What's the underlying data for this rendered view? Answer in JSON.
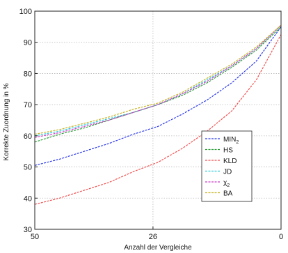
{
  "chart_data": {
    "type": "line",
    "xlabel": "Anzahl der Vergleiche",
    "ylabel": "Korrekte Zuordnung in %",
    "xlim": [
      50,
      0
    ],
    "ylim": [
      30,
      100
    ],
    "x_ticks": [
      50,
      26,
      0
    ],
    "y_ticks": [
      30,
      40,
      50,
      60,
      70,
      80,
      90,
      100
    ],
    "grid": true,
    "legend_position": "lower-right",
    "x": [
      50,
      45,
      40,
      35,
      30,
      25,
      20,
      15,
      10,
      5,
      0
    ],
    "series": [
      {
        "name": "MIN",
        "name_sub": "2",
        "color": "#2c3ae8",
        "values": [
          50.5,
          52.5,
          55,
          57.5,
          60.5,
          63,
          67,
          71.5,
          77,
          84,
          95
        ]
      },
      {
        "name": "HS",
        "name_sub": "",
        "color": "#2f9d3c",
        "values": [
          58,
          60.5,
          62.5,
          65,
          67.5,
          70,
          73,
          77,
          82,
          87.5,
          95
        ]
      },
      {
        "name": "KLD",
        "name_sub": "",
        "color": "#f05050",
        "values": [
          38,
          40,
          42.5,
          45,
          48.5,
          51.5,
          56,
          61.5,
          68,
          78,
          92.5
        ]
      },
      {
        "name": "JD",
        "name_sub": "",
        "color": "#2fc8d8",
        "values": [
          60,
          61.5,
          63.5,
          65.5,
          67.5,
          70,
          73.5,
          78,
          82.5,
          88,
          95.5
        ]
      },
      {
        "name": "χ",
        "name_sub": "2",
        "color": "#c840c8",
        "values": [
          59.5,
          61,
          63,
          65,
          67.5,
          70,
          73.5,
          77.5,
          82.5,
          88,
          95.5
        ]
      },
      {
        "name": "BA",
        "name_sub": "",
        "color": "#c8b42a",
        "values": [
          60.5,
          62,
          64,
          66,
          68.5,
          70.5,
          74,
          78.5,
          83,
          88.5,
          95.5
        ]
      }
    ]
  }
}
